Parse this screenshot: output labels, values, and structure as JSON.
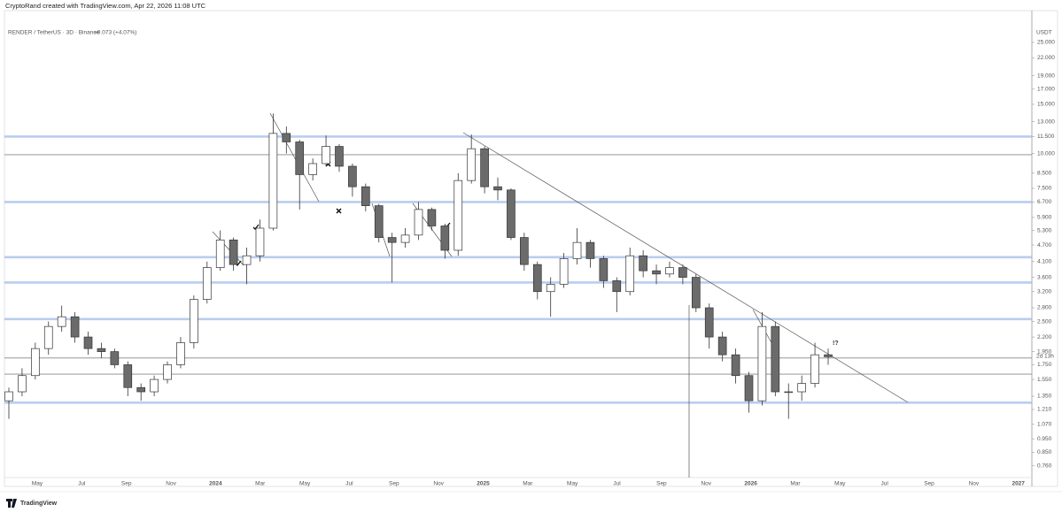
{
  "header": {
    "credit": "CryptoRand created with TradingView.com, Apr 22, 2026 11:08 UTC"
  },
  "footer": {
    "brand": "TradingView"
  },
  "chart_data": {
    "type": "candlestick",
    "title": "RENDER / TetherUS · 3D · Binance",
    "subtitle": "+0.073 (+4.07%)",
    "y_axis_label": "USDT",
    "countdown": "2d 13h",
    "annotation": "!?",
    "annotation_color": "#c62828",
    "log_scale": true,
    "up_color": "#ffffff",
    "down_color": "#6b6b6b",
    "outline_color": "#333333",
    "categories": [
      "May",
      "Jul",
      "Sep",
      "Nov",
      "2024",
      "Mar",
      "May",
      "Jul",
      "Sep",
      "Nov",
      "2025",
      "Mar",
      "May",
      "Jul",
      "Sep",
      "Nov",
      "2026",
      "Mar",
      "May",
      "Jul",
      "Sep",
      "Nov",
      "2027"
    ],
    "open": [
      1.3,
      1.4,
      1.6,
      2.0,
      2.4,
      2.6,
      2.2,
      2.0,
      1.95,
      1.75,
      1.45,
      1.4,
      1.55,
      1.75,
      2.1,
      3.0,
      3.9,
      4.9,
      4.0,
      4.3,
      5.4,
      11.8,
      11.0,
      8.4,
      9.2,
      10.6,
      9.0,
      7.6,
      6.5,
      5.0,
      4.8,
      5.1,
      6.3,
      5.5,
      4.5,
      8.0,
      10.4,
      7.6,
      7.4,
      5.0,
      4.0,
      3.2,
      3.4,
      4.2,
      4.8,
      4.2,
      3.5,
      3.2,
      4.3,
      3.8,
      3.7,
      3.9,
      3.6,
      2.8,
      2.2,
      1.9,
      1.6,
      1.3,
      2.4,
      1.4,
      1.4,
      1.5,
      1.9
    ],
    "high": [
      1.45,
      1.7,
      2.1,
      2.5,
      2.85,
      2.7,
      2.3,
      2.1,
      2.0,
      1.8,
      1.5,
      1.6,
      1.8,
      2.2,
      3.1,
      4.1,
      5.3,
      5.0,
      4.6,
      5.8,
      13.9,
      12.5,
      11.2,
      9.6,
      11.6,
      10.8,
      9.2,
      7.8,
      6.6,
      5.2,
      5.4,
      6.7,
      6.4,
      5.6,
      8.5,
      11.7,
      10.6,
      8.2,
      7.5,
      5.2,
      4.1,
      3.6,
      4.4,
      5.4,
      4.9,
      4.3,
      3.6,
      4.6,
      4.5,
      4.0,
      4.1,
      4.0,
      3.7,
      2.9,
      2.3,
      2.0,
      1.65,
      2.7,
      2.5,
      1.5,
      1.6,
      2.1,
      2.0
    ],
    "low": [
      1.12,
      1.35,
      1.55,
      1.9,
      2.3,
      2.1,
      1.9,
      1.85,
      1.7,
      1.35,
      1.3,
      1.35,
      1.5,
      1.7,
      2.0,
      2.9,
      3.8,
      3.8,
      3.4,
      4.1,
      5.3,
      10.0,
      6.3,
      8.0,
      9.0,
      8.6,
      7.0,
      6.2,
      4.8,
      3.45,
      4.6,
      4.9,
      5.3,
      4.2,
      4.3,
      7.8,
      7.2,
      6.8,
      4.9,
      3.8,
      3.0,
      2.6,
      3.3,
      4.0,
      3.9,
      3.3,
      2.7,
      3.1,
      3.6,
      3.4,
      3.6,
      3.4,
      2.7,
      2.0,
      1.8,
      1.5,
      1.18,
      1.25,
      1.35,
      1.12,
      1.3,
      1.45,
      1.75
    ],
    "close": [
      1.4,
      1.6,
      2.0,
      2.4,
      2.6,
      2.2,
      2.0,
      1.95,
      1.75,
      1.45,
      1.4,
      1.55,
      1.75,
      2.1,
      3.0,
      3.9,
      4.9,
      4.0,
      4.3,
      5.4,
      11.8,
      11.0,
      8.4,
      9.2,
      10.6,
      9.0,
      7.6,
      6.5,
      5.0,
      4.8,
      5.1,
      6.3,
      5.5,
      4.5,
      8.0,
      10.4,
      7.6,
      7.4,
      5.0,
      4.0,
      3.2,
      3.4,
      4.2,
      4.8,
      4.2,
      3.5,
      3.2,
      4.3,
      3.8,
      3.7,
      3.9,
      3.6,
      2.8,
      2.2,
      1.9,
      1.6,
      1.3,
      2.4,
      1.4,
      1.4,
      1.5,
      1.9,
      1.87
    ],
    "levels": [
      {
        "value": 11.5,
        "color": "#9db8e8"
      },
      {
        "value": 9.9,
        "color": "#888888"
      },
      {
        "value": 6.7,
        "color": "#9db8e8"
      },
      {
        "value": 4.25,
        "color": "#9db8e8"
      },
      {
        "value": 3.45,
        "color": "#9db8e8"
      },
      {
        "value": 2.55,
        "color": "#9db8e8"
      },
      {
        "value": 1.85,
        "color": "#888888"
      },
      {
        "value": 1.62,
        "color": "#888888"
      },
      {
        "value": 1.28,
        "color": "#9db8e8"
      }
    ],
    "ylim": [
      0.69,
      32.5
    ],
    "yticks": [
      {
        "value": 25,
        "label": "25.000"
      },
      {
        "value": 22,
        "label": "22.000"
      },
      {
        "value": 19,
        "label": "19.000"
      },
      {
        "value": 17,
        "label": "17.000"
      },
      {
        "value": 15,
        "label": "15.000"
      },
      {
        "value": 13,
        "label": "13.000"
      },
      {
        "value": 11.5,
        "label": "11.500"
      },
      {
        "value": 10,
        "label": "10.000"
      },
      {
        "value": 8.5,
        "label": "8.500"
      },
      {
        "value": 7.5,
        "label": "7.500"
      },
      {
        "value": 6.7,
        "label": "6.700"
      },
      {
        "value": 5.9,
        "label": "5.900"
      },
      {
        "value": 5.3,
        "label": "5.300"
      },
      {
        "value": 4.7,
        "label": "4.700"
      },
      {
        "value": 4.1,
        "label": "4.100"
      },
      {
        "value": 3.6,
        "label": "3.600"
      },
      {
        "value": 3.2,
        "label": "3.200"
      },
      {
        "value": 2.8,
        "label": "2.800"
      },
      {
        "value": 2.5,
        "label": "2.500"
      },
      {
        "value": 2.2,
        "label": "2.200"
      },
      {
        "value": 1.95,
        "label": "1.950"
      },
      {
        "value": 1.75,
        "label": "1.750"
      },
      {
        "value": 1.55,
        "label": "1.550"
      },
      {
        "value": 1.35,
        "label": "1.350"
      },
      {
        "value": 1.21,
        "label": "1.210"
      },
      {
        "value": 1.07,
        "label": "1.070"
      },
      {
        "value": 0.95,
        "label": "0.950"
      },
      {
        "value": 0.85,
        "label": "0.850"
      },
      {
        "value": 0.76,
        "label": "0.760"
      }
    ]
  }
}
